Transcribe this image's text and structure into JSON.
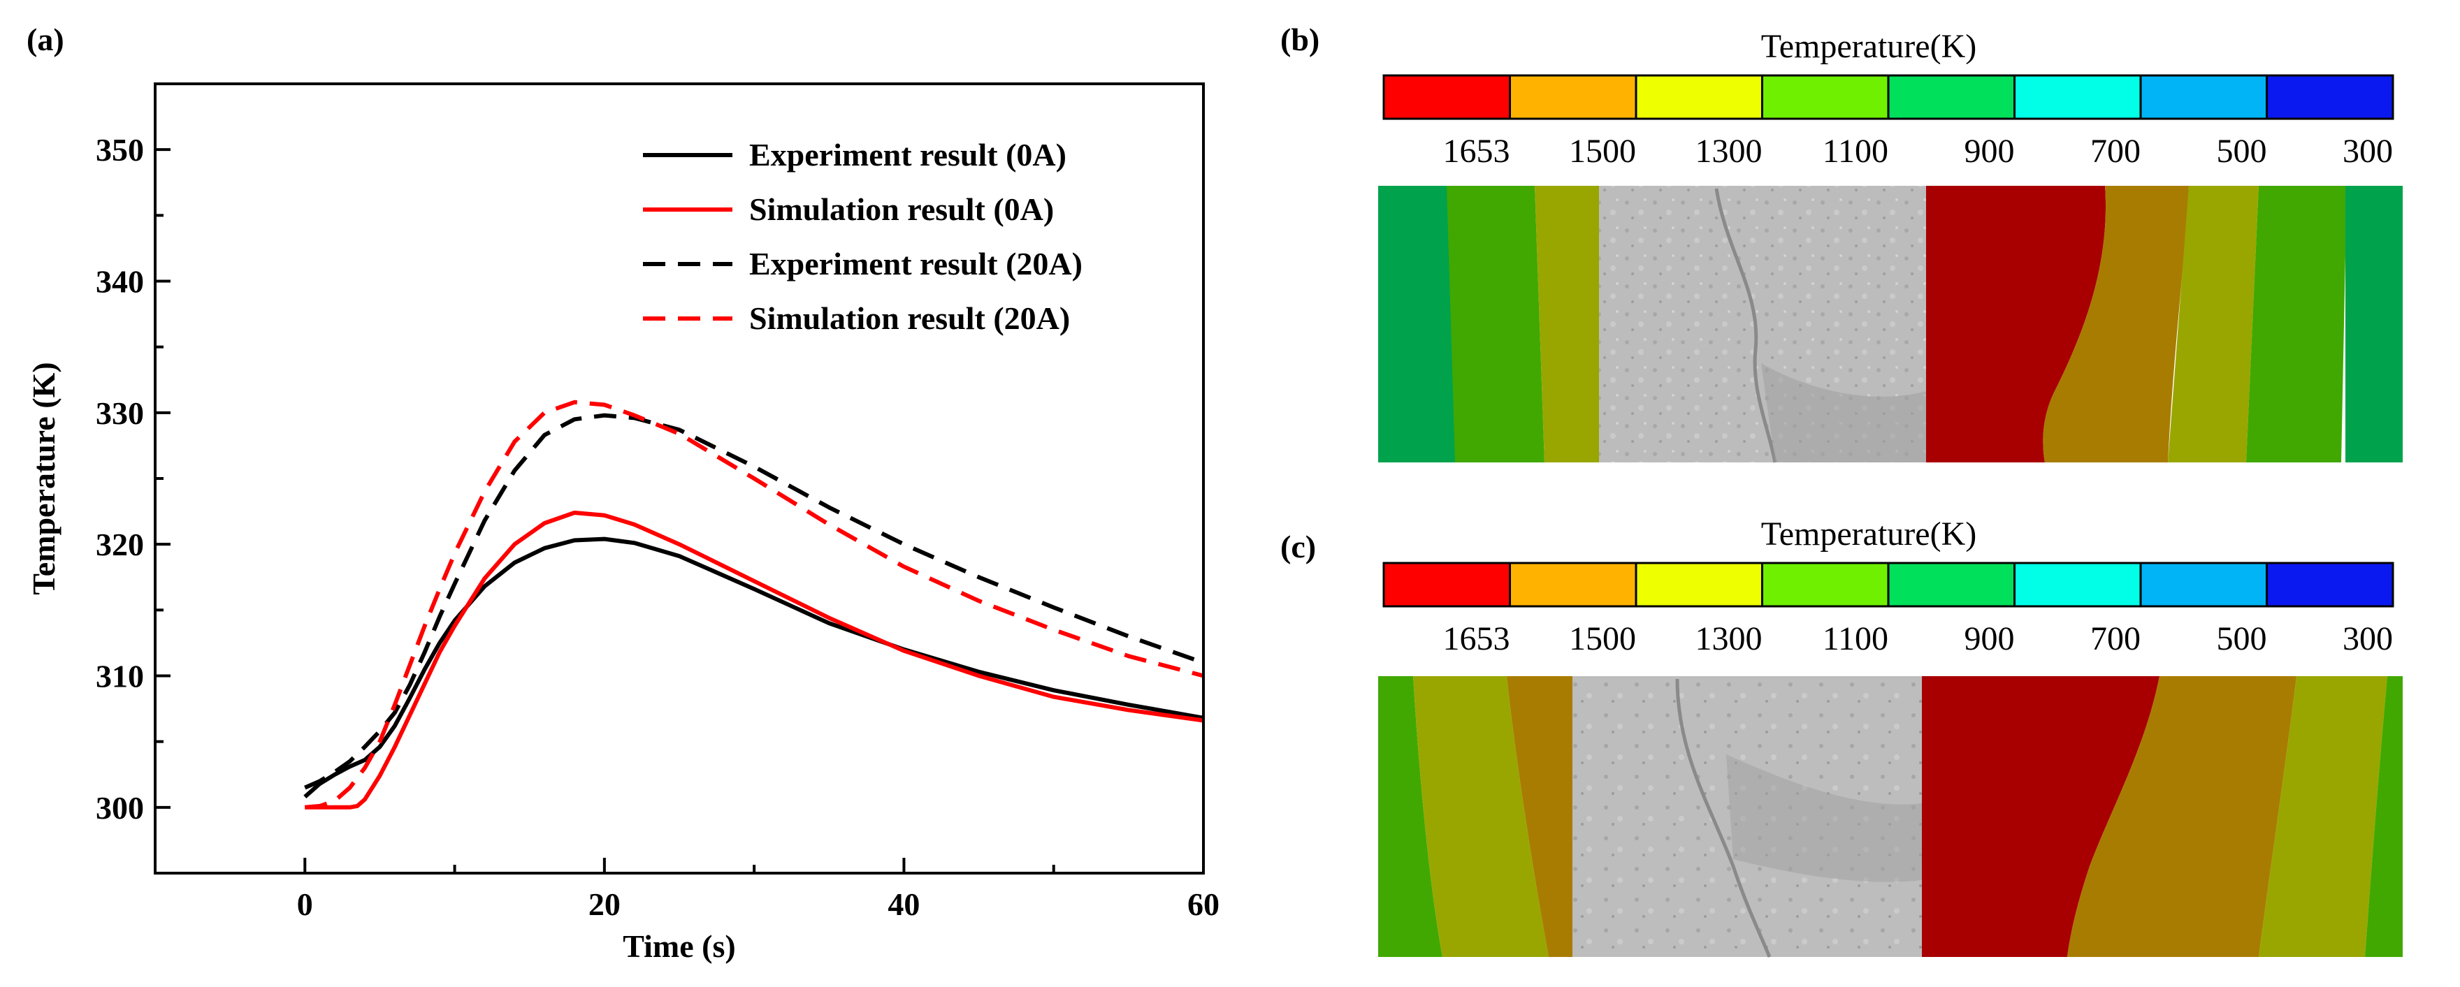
{
  "panels": {
    "a": {
      "label": "(a)"
    },
    "b": {
      "label": "(b)",
      "colorbar_title": "Temperature(K)"
    },
    "c": {
      "label": "(c)",
      "colorbar_title": "Temperature(K)"
    }
  },
  "colorbar": {
    "colors": [
      "#ff0000",
      "#ffb300",
      "#eeff00",
      "#6ff000",
      "#00e05a",
      "#00ffe6",
      "#00b4f5",
      "#0a19f0"
    ],
    "tick_labels": [
      "1653",
      "1500",
      "1300",
      "1100",
      "900",
      "700",
      "500",
      "300"
    ]
  },
  "contour_colors": {
    "melt": "#a80000",
    "hot": "#a87c00",
    "warm": "#99a600",
    "mid": "#40a800",
    "cool": "#00a24c",
    "weld": "#bdbdbd"
  },
  "chart_data": {
    "type": "line",
    "xlabel": "Time (s)",
    "ylabel": "Temperature (K)",
    "xlim": [
      -10,
      60
    ],
    "ylim": [
      295,
      355
    ],
    "xticks": [
      0,
      20,
      40,
      60
    ],
    "yticks": [
      300,
      310,
      320,
      330,
      340,
      350
    ],
    "grid": false,
    "legend": "top-right",
    "series": [
      {
        "name": "Experiment result (0A)",
        "color": "#000000",
        "style": "solid",
        "x": [
          0,
          1,
          2,
          3,
          4,
          5,
          6,
          7,
          8,
          9,
          10,
          12,
          14,
          16,
          18,
          20,
          22,
          25,
          30,
          35,
          40,
          45,
          50,
          55,
          60
        ],
        "y": [
          300.8,
          301.8,
          302.5,
          303.1,
          303.6,
          304.6,
          306.2,
          308.3,
          310.5,
          312.5,
          314.2,
          316.8,
          318.6,
          319.7,
          320.3,
          320.4,
          320.1,
          319.1,
          316.6,
          314.0,
          312.0,
          310.3,
          308.9,
          307.8,
          306.8
        ]
      },
      {
        "name": "Simulation result (0A)",
        "color": "#ff0000",
        "style": "solid",
        "x": [
          0,
          1,
          2,
          3,
          3.5,
          4,
          5,
          6,
          7,
          8,
          9,
          10,
          12,
          14,
          16,
          18,
          20,
          22,
          25,
          30,
          35,
          40,
          45,
          50,
          55,
          60
        ],
        "y": [
          300.0,
          300.0,
          300.0,
          300.0,
          300.1,
          300.6,
          302.4,
          304.6,
          307.0,
          309.4,
          311.8,
          313.8,
          317.4,
          320.0,
          321.6,
          322.4,
          322.2,
          321.5,
          320.0,
          317.2,
          314.4,
          311.9,
          310.0,
          308.4,
          307.4,
          306.6
        ]
      },
      {
        "name": "Experiment result (20A)",
        "color": "#000000",
        "style": "dashed",
        "x": [
          0,
          1,
          2,
          3,
          4,
          5,
          6,
          7,
          8,
          9,
          10,
          12,
          14,
          16,
          18,
          20,
          22,
          25,
          30,
          35,
          40,
          45,
          50,
          55,
          60
        ],
        "y": [
          301.5,
          302.0,
          302.7,
          303.5,
          304.6,
          305.8,
          307.2,
          309.3,
          311.8,
          314.5,
          317.0,
          321.8,
          325.6,
          328.3,
          329.5,
          329.8,
          329.6,
          328.7,
          325.9,
          322.8,
          320.0,
          317.5,
          315.2,
          313.0,
          311.0
        ]
      },
      {
        "name": "Simulation result (20A)",
        "color": "#ff0000",
        "style": "dashed",
        "x": [
          0,
          1,
          2,
          3,
          4,
          5,
          6,
          7,
          8,
          9,
          10,
          12,
          14,
          16,
          18,
          20,
          22,
          25,
          30,
          35,
          40,
          45,
          50,
          55,
          60
        ],
        "y": [
          300.0,
          300.1,
          300.5,
          301.5,
          303.0,
          305.0,
          307.8,
          310.8,
          313.8,
          316.6,
          319.3,
          324.0,
          327.8,
          330.0,
          330.8,
          330.6,
          329.8,
          328.4,
          325.0,
          321.5,
          318.3,
          315.7,
          313.5,
          311.5,
          310.0
        ]
      }
    ]
  }
}
